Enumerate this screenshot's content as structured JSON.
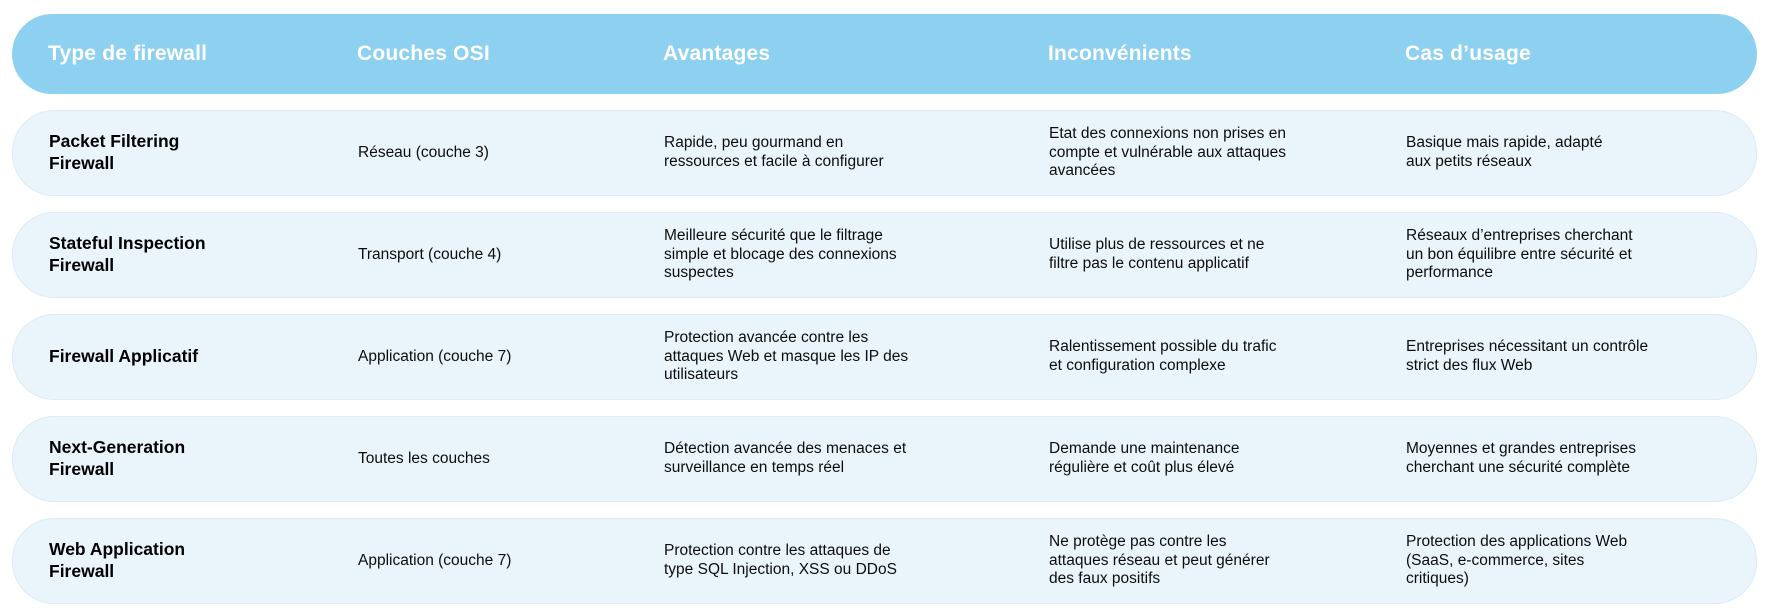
{
  "theme": {
    "header_bg": "#8DD0F0",
    "header_text": "#FFFFFF",
    "row_bg": "#E9F4FB",
    "row_border": "#DCEBF7",
    "body_text": "#0D0D0D"
  },
  "table": {
    "columns": [
      {
        "key": "type",
        "label": "Type de firewall"
      },
      {
        "key": "osi",
        "label": "Couches OSI"
      },
      {
        "key": "avantages",
        "label": "Avantages"
      },
      {
        "key": "inconvenients",
        "label": "Inconvénients"
      },
      {
        "key": "cas_usage",
        "label": "Cas d’usage"
      }
    ],
    "rows": [
      {
        "type": "Packet Filtering\nFirewall",
        "osi": "Réseau (couche 3)",
        "avantages": "Rapide, peu gourmand en\nressources et facile à configurer",
        "inconvenients": "Etat des connexions non prises en\ncompte et vulnérable aux attaques\navancées",
        "cas_usage": "Basique mais rapide, adapté\naux petits réseaux"
      },
      {
        "type": "Stateful Inspection\nFirewall",
        "osi": "Transport (couche 4)",
        "avantages": "Meilleure sécurité que le filtrage\nsimple et blocage des connexions\nsuspectes",
        "inconvenients": "Utilise plus de ressources et ne\nfiltre pas le contenu applicatif",
        "cas_usage": "Réseaux d’entreprises cherchant\nun bon équilibre entre sécurité et\nperformance"
      },
      {
        "type": "Firewall Applicatif",
        "osi": "Application (couche 7)",
        "avantages": "Protection avancée contre les\nattaques Web et masque les IP des\nutilisateurs",
        "inconvenients": "Ralentissement possible du trafic\net configuration complexe",
        "cas_usage": "Entreprises nécessitant un contrôle\nstrict des flux Web"
      },
      {
        "type": "Next-Generation\nFirewall",
        "osi": "Toutes les couches",
        "avantages": "Détection avancée des menaces et\nsurveillance en temps réel",
        "inconvenients": "Demande une maintenance\nrégulière et coût plus élevé",
        "cas_usage": "Moyennes et grandes entreprises\ncherchant une sécurité complète"
      },
      {
        "type": "Web Application\nFirewall",
        "osi": "Application (couche 7)",
        "avantages": "Protection contre les attaques de\ntype SQL Injection, XSS ou DDoS",
        "inconvenients": "Ne protège pas contre les\nattaques réseau et peut générer\ndes faux positifs",
        "cas_usage": "Protection des applications Web\n(SaaS, e-commerce, sites\ncritiques)"
      }
    ]
  }
}
